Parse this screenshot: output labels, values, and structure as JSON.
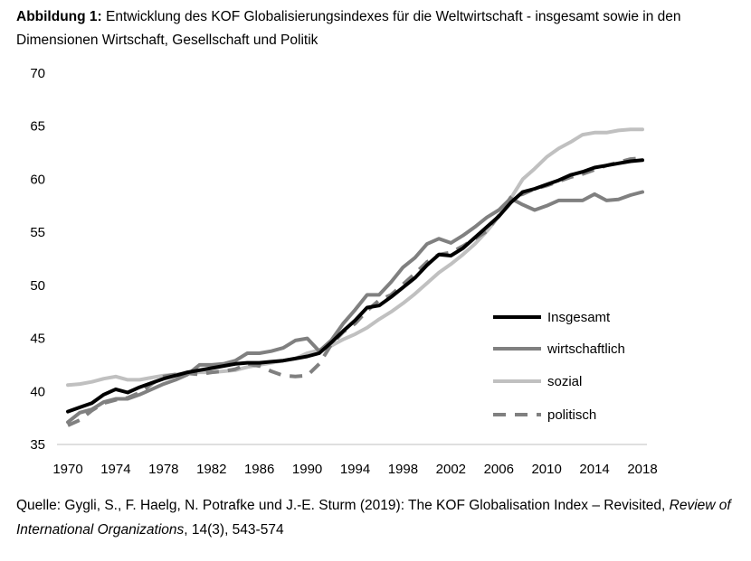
{
  "figure": {
    "label": "Abbildung 1:",
    "title": "Entwicklung des KOF Globalisierungsindexes für die Weltwirtschaft - insgesamt sowie in den Dimensionen Wirtschaft, Gesellschaft und Politik"
  },
  "source": {
    "prefix": "Quelle: Gygli, S., F. Haelg, N. Potrafke und J.-E. Sturm (2019): The KOF Globalisation Index – Revisited, ",
    "journal": "Review of International Organizations",
    "suffix": ", 14(3), 543-574"
  },
  "chart_data": {
    "type": "line",
    "title": "",
    "xlabel": "",
    "ylabel": "",
    "xlim": [
      1970,
      2018
    ],
    "ylim": [
      35,
      70
    ],
    "x_ticks": [
      "1970",
      "1974",
      "1978",
      "1982",
      "1986",
      "1990",
      "1994",
      "1998",
      "2002",
      "2006",
      "2010",
      "2014",
      "2018"
    ],
    "y_ticks": [
      "35",
      "40",
      "45",
      "50",
      "55",
      "60",
      "65",
      "70"
    ],
    "grid": false,
    "legend": "right",
    "x": [
      1970,
      1971,
      1972,
      1973,
      1974,
      1975,
      1976,
      1977,
      1978,
      1979,
      1980,
      1981,
      1982,
      1983,
      1984,
      1985,
      1986,
      1987,
      1988,
      1989,
      1990,
      1991,
      1992,
      1993,
      1994,
      1995,
      1996,
      1997,
      1998,
      1999,
      2000,
      2001,
      2002,
      2003,
      2004,
      2005,
      2006,
      2007,
      2008,
      2009,
      2010,
      2011,
      2012,
      2013,
      2014,
      2015,
      2016,
      2017,
      2018
    ],
    "series": [
      {
        "name": "Insgesamt",
        "color": "#000000",
        "dash": "solid",
        "values": [
          38.1,
          38.5,
          38.9,
          39.7,
          40.2,
          39.9,
          40.4,
          40.8,
          41.2,
          41.5,
          41.8,
          42.0,
          42.2,
          42.4,
          42.6,
          42.7,
          42.7,
          42.8,
          42.9,
          43.1,
          43.3,
          43.6,
          44.6,
          45.7,
          46.7,
          47.9,
          48.1,
          48.9,
          49.8,
          50.7,
          51.9,
          52.9,
          52.8,
          53.5,
          54.5,
          55.5,
          56.5,
          57.8,
          58.8,
          59.1,
          59.5,
          59.9,
          60.4,
          60.7,
          61.1,
          61.3,
          61.5,
          61.7,
          61.8
        ]
      },
      {
        "name": "wirtschaftlich",
        "color": "#808080",
        "dash": "solid",
        "values": [
          37.1,
          38.0,
          38.3,
          39.0,
          39.3,
          39.3,
          39.7,
          40.2,
          40.7,
          41.1,
          41.6,
          42.5,
          42.5,
          42.6,
          42.9,
          43.6,
          43.6,
          43.8,
          44.1,
          44.8,
          45.0,
          43.8,
          44.8,
          46.4,
          47.7,
          49.1,
          49.1,
          50.3,
          51.7,
          52.6,
          53.9,
          54.4,
          54.0,
          54.7,
          55.5,
          56.4,
          57.1,
          58.2,
          57.6,
          57.1,
          57.5,
          58.0,
          58.0,
          58.0,
          58.6,
          58.0,
          58.1,
          58.5,
          58.8
        ]
      },
      {
        "name": "sozial",
        "color": "#c0c0c0",
        "dash": "solid",
        "values": [
          40.6,
          40.7,
          40.9,
          41.2,
          41.4,
          41.1,
          41.1,
          41.3,
          41.5,
          41.6,
          41.7,
          41.8,
          41.8,
          41.9,
          42.0,
          42.3,
          42.5,
          42.7,
          42.9,
          43.1,
          43.6,
          43.9,
          44.3,
          44.9,
          45.4,
          46.0,
          46.8,
          47.5,
          48.3,
          49.2,
          50.2,
          51.2,
          52.0,
          52.9,
          53.9,
          55.1,
          56.5,
          58.2,
          60.0,
          61.0,
          62.1,
          62.9,
          63.5,
          64.2,
          64.4,
          64.4,
          64.6,
          64.7,
          64.7
        ]
      },
      {
        "name": "politisch",
        "color": "#808080",
        "dash": "dashed",
        "values": [
          36.8,
          37.3,
          38.2,
          38.9,
          39.2,
          39.4,
          39.9,
          40.7,
          41.4,
          41.6,
          41.7,
          41.6,
          41.8,
          41.9,
          42.1,
          42.6,
          42.4,
          41.9,
          41.5,
          41.4,
          41.5,
          42.6,
          44.4,
          45.6,
          46.4,
          47.6,
          48.6,
          49.1,
          50.1,
          51.1,
          52.2,
          52.9,
          53.1,
          53.7,
          54.4,
          55.1,
          56.6,
          58.3,
          58.6,
          59.1,
          59.4,
          59.8,
          60.2,
          60.5,
          60.9,
          61.3,
          61.6,
          61.9,
          62.0
        ]
      }
    ]
  }
}
